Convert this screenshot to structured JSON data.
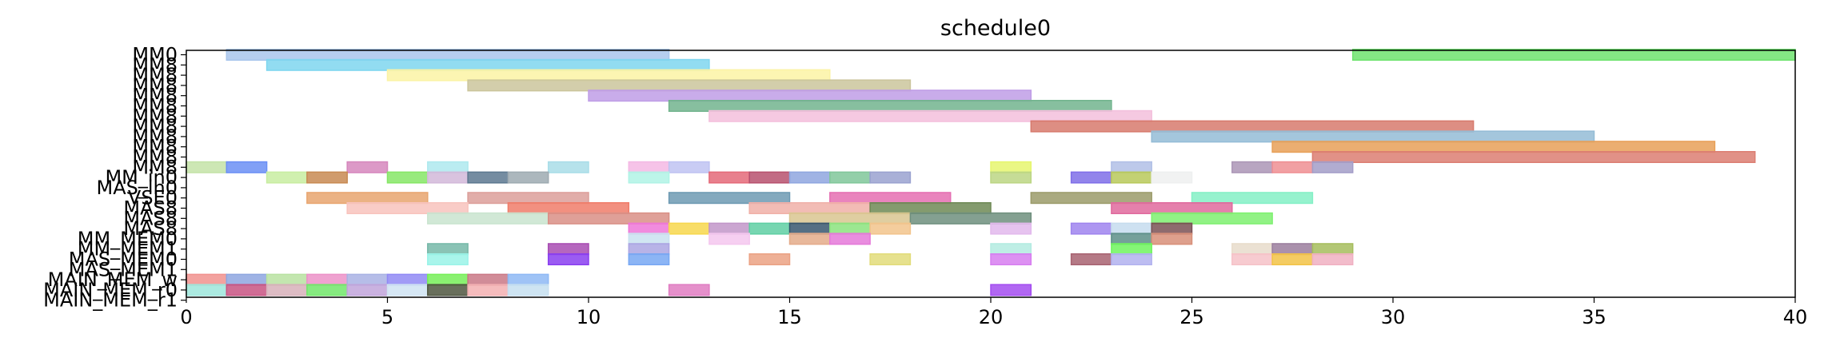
{
  "chart_data": {
    "type": "gantt",
    "title": "schedule0",
    "xlabel": "",
    "ylabel": "",
    "xlim": [
      0,
      40
    ],
    "xticks": [
      0,
      5,
      10,
      15,
      20,
      25,
      30,
      35,
      40
    ],
    "grid": false,
    "legend": "none",
    "rows": [
      "MM0",
      "MM8",
      "MM8",
      "MM8",
      "MM8",
      "MM8",
      "MM8",
      "MM8",
      "MM8",
      "MM8",
      "MM8",
      "MM8",
      "MM_in0",
      "MAS_in0",
      "VSE0",
      "MAS8",
      "MAS8",
      "MAS8",
      "MM_MEM0",
      "MM_MEM1",
      "MAS_MEM0",
      "MAS_MEM1",
      "MAIN_MEM_w",
      "MAIN_MEM_r0",
      "MAIN_MEM_r1"
    ],
    "bars": [
      {
        "row": 0,
        "start": 1,
        "end": 12,
        "color": "#a9c6ec"
      },
      {
        "row": 0,
        "start": 29,
        "end": 40,
        "color": "#6fe36f"
      },
      {
        "row": 1,
        "start": 2,
        "end": 13,
        "color": "#7fd6ef"
      },
      {
        "row": 2,
        "start": 5,
        "end": 16,
        "color": "#fbf3a5"
      },
      {
        "row": 3,
        "start": 7,
        "end": 18,
        "color": "#cbc59c"
      },
      {
        "row": 4,
        "start": 10,
        "end": 21,
        "color": "#bf9de6"
      },
      {
        "row": 5,
        "start": 12,
        "end": 23,
        "color": "#72b48e"
      },
      {
        "row": 6,
        "start": 13,
        "end": 24,
        "color": "#f3c0dc"
      },
      {
        "row": 7,
        "start": 21,
        "end": 32,
        "color": "#d77a6d"
      },
      {
        "row": 8,
        "start": 24,
        "end": 35,
        "color": "#94bcd6"
      },
      {
        "row": 9,
        "start": 27,
        "end": 38,
        "color": "#e7a058"
      },
      {
        "row": 10,
        "start": 28,
        "end": 39,
        "color": "#dc7e72"
      },
      {
        "row": 11,
        "start": 0,
        "end": 1,
        "color": "#c4e3a7"
      },
      {
        "row": 11,
        "start": 1,
        "end": 2,
        "color": "#6b8ff5"
      },
      {
        "row": 11,
        "start": 4,
        "end": 5,
        "color": "#d687bd"
      },
      {
        "row": 11,
        "start": 6,
        "end": 7,
        "color": "#aee9ee"
      },
      {
        "row": 11,
        "start": 9,
        "end": 10,
        "color": "#a9dde8"
      },
      {
        "row": 11,
        "start": 11,
        "end": 12,
        "color": "#f4b8e4"
      },
      {
        "row": 11,
        "start": 12,
        "end": 13,
        "color": "#bfc3f2"
      },
      {
        "row": 11,
        "start": 20,
        "end": 21,
        "color": "#e6f66e"
      },
      {
        "row": 11,
        "start": 23,
        "end": 24,
        "color": "#b1bfe6"
      },
      {
        "row": 11,
        "start": 26,
        "end": 27,
        "color": "#ab95b6"
      },
      {
        "row": 11,
        "start": 27,
        "end": 28,
        "color": "#ef8f93"
      },
      {
        "row": 11,
        "start": 28,
        "end": 29,
        "color": "#a39dc8"
      },
      {
        "row": 12,
        "start": 2,
        "end": 3,
        "color": "#c8eda1"
      },
      {
        "row": 12,
        "start": 3,
        "end": 4,
        "color": "#c88a52"
      },
      {
        "row": 12,
        "start": 5,
        "end": 6,
        "color": "#86e666"
      },
      {
        "row": 12,
        "start": 6,
        "end": 7,
        "color": "#d2b9d9"
      },
      {
        "row": 12,
        "start": 7,
        "end": 8,
        "color": "#5d7890"
      },
      {
        "row": 12,
        "start": 8,
        "end": 9,
        "color": "#9eaab1"
      },
      {
        "row": 12,
        "start": 11,
        "end": 12,
        "color": "#b0f3e5"
      },
      {
        "row": 12,
        "start": 13,
        "end": 14,
        "color": "#e46a79"
      },
      {
        "row": 12,
        "start": 14,
        "end": 15,
        "color": "#b7516e"
      },
      {
        "row": 12,
        "start": 15,
        "end": 16,
        "color": "#8fa6df"
      },
      {
        "row": 12,
        "start": 16,
        "end": 17,
        "color": "#80c79a"
      },
      {
        "row": 12,
        "start": 17,
        "end": 18,
        "color": "#9aa2d0"
      },
      {
        "row": 12,
        "start": 20,
        "end": 21,
        "color": "#bcd684"
      },
      {
        "row": 12,
        "start": 22,
        "end": 23,
        "color": "#7f6ee8"
      },
      {
        "row": 12,
        "start": 23,
        "end": 24,
        "color": "#b8c95a"
      },
      {
        "row": 12,
        "start": 24,
        "end": 25,
        "color": "#eef0f0"
      },
      {
        "row": 14,
        "start": 3,
        "end": 6,
        "color": "#e8a56f"
      },
      {
        "row": 14,
        "start": 7,
        "end": 10,
        "color": "#dc9f9a"
      },
      {
        "row": 14,
        "start": 12,
        "end": 15,
        "color": "#6d9ab3"
      },
      {
        "row": 14,
        "start": 16,
        "end": 19,
        "color": "#e56fb2"
      },
      {
        "row": 14,
        "start": 21,
        "end": 24,
        "color": "#9b9b6a"
      },
      {
        "row": 14,
        "start": 25,
        "end": 28,
        "color": "#84f0c6"
      },
      {
        "row": 15,
        "start": 4,
        "end": 7,
        "color": "#f8c3bd"
      },
      {
        "row": 15,
        "start": 8,
        "end": 11,
        "color": "#f07d6a"
      },
      {
        "row": 15,
        "start": 14,
        "end": 17,
        "color": "#f0b0a8"
      },
      {
        "row": 15,
        "start": 17,
        "end": 20,
        "color": "#6e8a55"
      },
      {
        "row": 15,
        "start": 23,
        "end": 26,
        "color": "#e06a9e"
      },
      {
        "row": 16,
        "start": 6,
        "end": 9,
        "color": "#c9e4cf"
      },
      {
        "row": 16,
        "start": 9,
        "end": 12,
        "color": "#d98f86"
      },
      {
        "row": 16,
        "start": 15,
        "end": 18,
        "color": "#d9c691"
      },
      {
        "row": 16,
        "start": 18,
        "end": 21,
        "color": "#6f8f7e"
      },
      {
        "row": 16,
        "start": 24,
        "end": 27,
        "color": "#7ef070"
      },
      {
        "row": 17,
        "start": 11,
        "end": 12,
        "color": "#ee77d8"
      },
      {
        "row": 17,
        "start": 12,
        "end": 13,
        "color": "#f7d74d"
      },
      {
        "row": 17,
        "start": 13,
        "end": 14,
        "color": "#c297c9"
      },
      {
        "row": 17,
        "start": 14,
        "end": 15,
        "color": "#5fcfa3"
      },
      {
        "row": 17,
        "start": 15,
        "end": 16,
        "color": "#37566f"
      },
      {
        "row": 17,
        "start": 16,
        "end": 17,
        "color": "#8be37e"
      },
      {
        "row": 17,
        "start": 17,
        "end": 18,
        "color": "#f2c48c"
      },
      {
        "row": 17,
        "start": 20,
        "end": 21,
        "color": "#e2b9ec"
      },
      {
        "row": 17,
        "start": 22,
        "end": 23,
        "color": "#9f84ee"
      },
      {
        "row": 17,
        "start": 23,
        "end": 24,
        "color": "#c6dcee"
      },
      {
        "row": 17,
        "start": 24,
        "end": 25,
        "color": "#7a5155"
      },
      {
        "row": 18,
        "start": 11,
        "end": 12,
        "color": "#c9e2f0"
      },
      {
        "row": 18,
        "start": 13,
        "end": 14,
        "color": "#f4c7ef"
      },
      {
        "row": 18,
        "start": 15,
        "end": 16,
        "color": "#e4ab8a"
      },
      {
        "row": 18,
        "start": 16,
        "end": 17,
        "color": "#e579d9"
      },
      {
        "row": 18,
        "start": 23,
        "end": 24,
        "color": "#5d8f88"
      },
      {
        "row": 18,
        "start": 24,
        "end": 25,
        "color": "#d88f79"
      },
      {
        "row": 19,
        "start": 6,
        "end": 7,
        "color": "#76b8a8"
      },
      {
        "row": 19,
        "start": 9,
        "end": 10,
        "color": "#a84cb3"
      },
      {
        "row": 19,
        "start": 11,
        "end": 12,
        "color": "#aca6e3"
      },
      {
        "row": 19,
        "start": 20,
        "end": 21,
        "color": "#b3ebe1"
      },
      {
        "row": 19,
        "start": 23,
        "end": 24,
        "color": "#6ff55e"
      },
      {
        "row": 19,
        "start": 26,
        "end": 27,
        "color": "#e8dccb"
      },
      {
        "row": 19,
        "start": 27,
        "end": 28,
        "color": "#9b7e9e"
      },
      {
        "row": 19,
        "start": 28,
        "end": 29,
        "color": "#a6bd5d"
      },
      {
        "row": 20,
        "start": 6,
        "end": 7,
        "color": "#9af3e8"
      },
      {
        "row": 20,
        "start": 9,
        "end": 10,
        "color": "#8a3ff0"
      },
      {
        "row": 20,
        "start": 11,
        "end": 12,
        "color": "#78a8f3"
      },
      {
        "row": 20,
        "start": 14,
        "end": 15,
        "color": "#eba284"
      },
      {
        "row": 20,
        "start": 17,
        "end": 18,
        "color": "#e2dc7a"
      },
      {
        "row": 20,
        "start": 20,
        "end": 21,
        "color": "#d77ef0"
      },
      {
        "row": 20,
        "start": 22,
        "end": 23,
        "color": "#a86371"
      },
      {
        "row": 20,
        "start": 23,
        "end": 24,
        "color": "#b2b2ef"
      },
      {
        "row": 20,
        "start": 26,
        "end": 27,
        "color": "#f6c2c8"
      },
      {
        "row": 20,
        "start": 27,
        "end": 28,
        "color": "#f2c347"
      },
      {
        "row": 20,
        "start": 28,
        "end": 29,
        "color": "#f0b0c2"
      },
      {
        "row": 22,
        "start": 0,
        "end": 1,
        "color": "#f1928e"
      },
      {
        "row": 22,
        "start": 1,
        "end": 2,
        "color": "#8ea6e0"
      },
      {
        "row": 22,
        "start": 2,
        "end": 3,
        "color": "#b9e2a1"
      },
      {
        "row": 22,
        "start": 3,
        "end": 4,
        "color": "#ec92c8"
      },
      {
        "row": 22,
        "start": 4,
        "end": 5,
        "color": "#a9b2e4"
      },
      {
        "row": 22,
        "start": 5,
        "end": 6,
        "color": "#9189f5"
      },
      {
        "row": 22,
        "start": 6,
        "end": 7,
        "color": "#76ef58"
      },
      {
        "row": 22,
        "start": 7,
        "end": 8,
        "color": "#c97886"
      },
      {
        "row": 22,
        "start": 8,
        "end": 9,
        "color": "#8eb8f5"
      },
      {
        "row": 23,
        "start": 0,
        "end": 1,
        "color": "#9ee6dc"
      },
      {
        "row": 23,
        "start": 1,
        "end": 2,
        "color": "#c85382"
      },
      {
        "row": 23,
        "start": 2,
        "end": 3,
        "color": "#d7b0ba"
      },
      {
        "row": 23,
        "start": 3,
        "end": 4,
        "color": "#71e66a"
      },
      {
        "row": 23,
        "start": 4,
        "end": 5,
        "color": "#c1a4da"
      },
      {
        "row": 23,
        "start": 5,
        "end": 6,
        "color": "#cfe3f2"
      },
      {
        "row": 23,
        "start": 6,
        "end": 7,
        "color": "#4f5640"
      },
      {
        "row": 23,
        "start": 7,
        "end": 8,
        "color": "#f3b0b2"
      },
      {
        "row": 23,
        "start": 8,
        "end": 9,
        "color": "#c6dff0"
      },
      {
        "row": 23,
        "start": 12,
        "end": 13,
        "color": "#e07cc2"
      },
      {
        "row": 23,
        "start": 20,
        "end": 21,
        "color": "#a34cf0"
      }
    ]
  }
}
